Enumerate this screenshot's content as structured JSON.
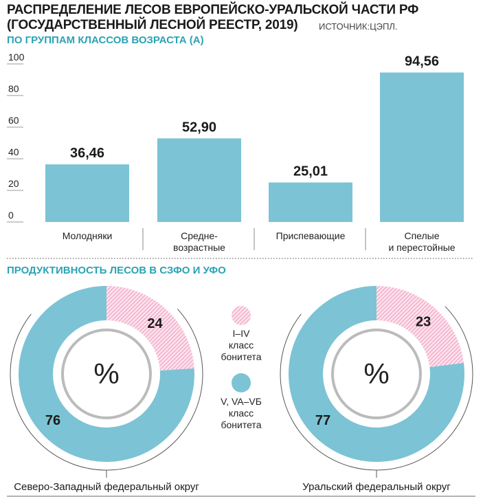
{
  "title_line1": "РАСПРЕДЕЛЕНИЕ ЛЕСОВ ЕВРОПЕЙСКО-УРАЛЬСКОЙ ЧАСТИ РФ",
  "title_line2": "(ГОСУДАРСТВЕННЫЙ ЛЕСНОЙ РЕЕСТР, 2019)",
  "source": "ИСТОЧНИК:ЦЭПЛ.",
  "colors": {
    "teal": "#7cc3d5",
    "pink": "#f4b6cf",
    "accent": "#2aa3b3"
  },
  "chart_data": [
    {
      "type": "bar",
      "title": "ПО ГРУППАМ КЛАССОВ ВОЗРАСТА (А)",
      "categories": [
        [
          "Молодняки"
        ],
        [
          "Средне-",
          "возрастные"
        ],
        [
          "Приспевающие"
        ],
        [
          "Спелые",
          "и перестойные"
        ]
      ],
      "values": [
        36.46,
        52.9,
        25.01,
        94.56
      ],
      "value_labels": [
        "36,46",
        "52,90",
        "25,01",
        "94,56"
      ],
      "ylim": [
        0,
        100
      ],
      "yticks": [
        "0",
        "20",
        "40",
        "60",
        "80",
        "100"
      ]
    },
    {
      "type": "pie",
      "title": "ПРОДУКТИВНОСТЬ ЛЕСОВ В СЗФО И УФО",
      "center_label": "%",
      "legend": [
        {
          "lines": [
            "I–IV",
            "класс",
            "бонитета"
          ]
        },
        {
          "lines": [
            "V, VA–VБ",
            "класс",
            "бонитета"
          ]
        }
      ],
      "donuts": [
        {
          "name": "Северо-Западный федеральный округ",
          "values": [
            24,
            76
          ]
        },
        {
          "name": "Уральский федеральный округ",
          "values": [
            23,
            77
          ]
        }
      ]
    }
  ]
}
